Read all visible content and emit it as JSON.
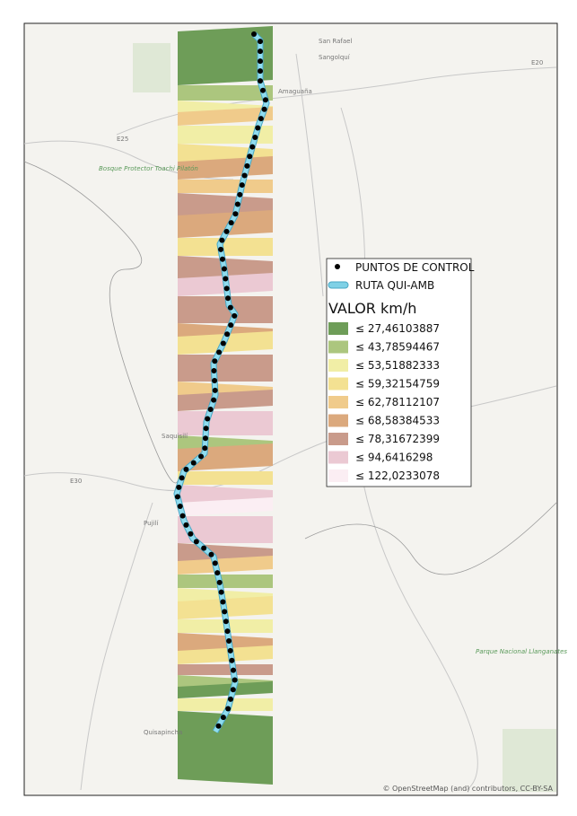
{
  "legend": {
    "points": "PUNTOS DE CONTROL",
    "route": "RUTA QUI-AMB",
    "title": "VALOR km/h",
    "classes": [
      {
        "label": "≤ 27,46103887",
        "color": "#6e9d58"
      },
      {
        "label": "≤ 43,78594467",
        "color": "#acc67e"
      },
      {
        "label": "≤ 53,51882333",
        "color": "#f1eea6"
      },
      {
        "label": "≤ 59,32154759",
        "color": "#f3e192"
      },
      {
        "label": "≤ 62,78112107",
        "color": "#f0cb8b"
      },
      {
        "label": "≤ 68,58384533",
        "color": "#dba97d"
      },
      {
        "label": "≤ 78,31672399",
        "color": "#c99b8b"
      },
      {
        "label": "≤ 94,6416298",
        "color": "#ebc9d3"
      },
      {
        "label": "≤ 122,0233078",
        "color": "#fbeef3"
      }
    ]
  },
  "places": [
    {
      "text": "San Rafael"
    },
    {
      "text": "Sangolquí"
    },
    {
      "text": "Amaguaña"
    },
    {
      "text": "Bosque Protector Toachi Pilatón"
    },
    {
      "text": "Saquisilí"
    },
    {
      "text": "Pujilí"
    },
    {
      "text": "Parque Nacional Llanganates"
    },
    {
      "text": "Quisapincha"
    },
    {
      "text": "E20"
    },
    {
      "text": "E25"
    },
    {
      "text": "E30"
    }
  ],
  "attribution": "© OpenStreetMap (and) contributors, CC-BY-SA"
}
